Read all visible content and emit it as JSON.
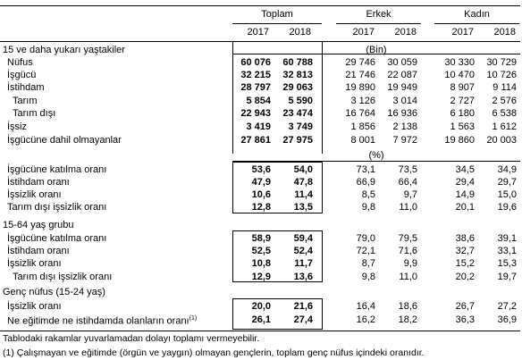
{
  "headers": {
    "groups": [
      "Toplam",
      "Erkek",
      "Kadın"
    ],
    "years": [
      "2017",
      "2018"
    ]
  },
  "sections": [
    {
      "title": "15 ve daha yukarı yaştakiler",
      "unit": "(Bin)"
    },
    {
      "unit": "(%)"
    },
    {
      "title": "15-64 yaş grubu"
    },
    {
      "title": "Genç nüfus (15-24 yaş)"
    }
  ],
  "rows": [
    {
      "label": "Nüfus",
      "values": [
        "60 076",
        "60 788",
        "29 746",
        "30 059",
        "30 330",
        "30 729"
      ]
    },
    {
      "label": "İşgücü",
      "values": [
        "32 215",
        "32 813",
        "21 746",
        "22 087",
        "10 470",
        "10 726"
      ]
    },
    {
      "label": "İstihdam",
      "values": [
        "28 797",
        "29 063",
        "19 890",
        "19 949",
        "8 907",
        "9 114"
      ]
    },
    {
      "label": "Tarım",
      "values": [
        "5 854",
        "5 590",
        "3 126",
        "3 014",
        "2 727",
        "2 576"
      ]
    },
    {
      "label": "Tarım dışı",
      "values": [
        "22 943",
        "23 474",
        "16 764",
        "16 936",
        "6 180",
        "6 538"
      ]
    },
    {
      "label": "İşsiz",
      "values": [
        "3 419",
        "3 749",
        "1 856",
        "2 138",
        "1 563",
        "1 612"
      ]
    },
    {
      "label": "İşgücüne dahil olmayanlar",
      "values": [
        "27 861",
        "27 975",
        "8 001",
        "7 972",
        "19 860",
        "20 003"
      ]
    },
    {
      "label": "İşgücüne katılma oranı",
      "values": [
        "53,6",
        "54,0",
        "73,1",
        "73,5",
        "34,5",
        "34,9"
      ]
    },
    {
      "label": "İstihdam oranı",
      "values": [
        "47,9",
        "47,8",
        "66,9",
        "66,4",
        "29,4",
        "29,7"
      ]
    },
    {
      "label": "İşsizlik oranı",
      "values": [
        "10,6",
        "11,4",
        "8,5",
        "9,7",
        "14,9",
        "15,0"
      ]
    },
    {
      "label": "Tarım dışı işsizlik oranı",
      "values": [
        "12,8",
        "13,5",
        "9,8",
        "11,0",
        "20,1",
        "19,6"
      ]
    },
    {
      "label": "İşgücüne katılma oranı",
      "values": [
        "58,9",
        "59,4",
        "79,0",
        "79,5",
        "38,6",
        "39,1"
      ]
    },
    {
      "label": "İstihdam oranı",
      "values": [
        "52,5",
        "52,4",
        "72,1",
        "71,6",
        "32,7",
        "33,1"
      ]
    },
    {
      "label": "İşsizlik oranı",
      "values": [
        "10,8",
        "11,7",
        "8,7",
        "9,9",
        "15,2",
        "15,3"
      ]
    },
    {
      "label": "Tarım dışı işsizlik oranı",
      "values": [
        "12,9",
        "13,6",
        "9,8",
        "11,0",
        "20,2",
        "19,7"
      ]
    },
    {
      "label": "İşsizlik oranı",
      "values": [
        "20,0",
        "21,6",
        "16,4",
        "18,6",
        "26,7",
        "27,2"
      ]
    },
    {
      "label": "Ne eğitimde ne istihdamda olanların oranı",
      "sup": "(1)",
      "values": [
        "26,1",
        "27,4",
        "16,2",
        "18,2",
        "36,3",
        "36,9"
      ]
    }
  ],
  "footnotes": [
    "Tablodaki rakamlar yuvarlamadan dolayı toplamı vermeyebilir.",
    "(1) Çalışmayan ve eğitimde (örgün ve yaygın) olmayan gençlerin, toplam genç nüfus içindeki oranıdır."
  ]
}
